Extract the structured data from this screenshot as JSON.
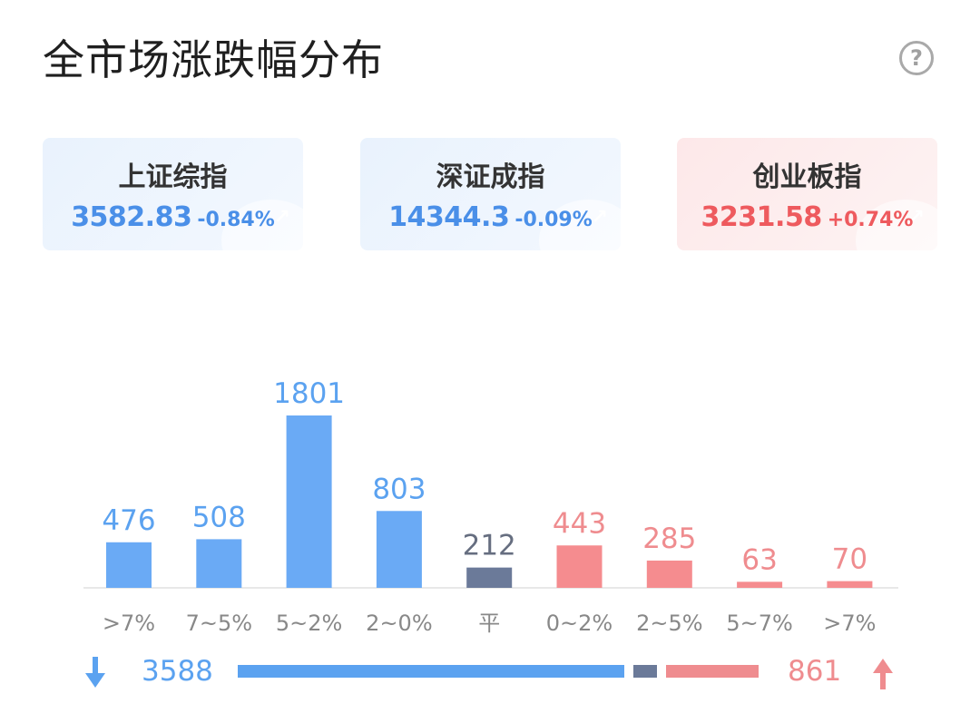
{
  "header": {
    "title": "全市场涨跌幅分布",
    "help_icon": "?"
  },
  "indices": [
    {
      "name": "上证综指",
      "price": "3582.83",
      "change": "-0.84%",
      "color": "#4a8fe8",
      "deco_icon": "chart-up-icon"
    },
    {
      "name": "深证成指",
      "price": "14344.3",
      "change": "-0.09%",
      "color": "#4a8fe8",
      "deco_icon": "chart-up-icon"
    },
    {
      "name": "创业板指",
      "price": "3231.58",
      "change": "+0.74%",
      "color": "#ee5a5e",
      "deco_icon": "chart-up-icon"
    }
  ],
  "chart_data": {
    "type": "bar",
    "categories": [
      ">7%",
      "7~5%",
      "5~2%",
      "2~0%",
      "平",
      "0~2%",
      "2~5%",
      "5~7%",
      ">7%"
    ],
    "values": [
      476,
      508,
      1801,
      803,
      212,
      443,
      285,
      63,
      70
    ],
    "groups": [
      "down",
      "down",
      "down",
      "down",
      "flat",
      "up",
      "up",
      "up",
      "up"
    ],
    "colors": {
      "down": "#6aaaf5",
      "flat": "#6b7a99",
      "up": "#f58c8f",
      "down_label": "#5ba2f0",
      "flat_label": "#666e80",
      "up_label": "#ef8c8f",
      "axis_label": "#888888",
      "baseline": "#e8e8e8"
    }
  },
  "summary": {
    "down_total": "3588",
    "up_total": "861",
    "flat_total": 212,
    "down_icon": "arrow-down-icon",
    "up_icon": "arrow-up-icon",
    "down_color": "#5ba2f0",
    "up_color": "#ef8c8f",
    "flat_color": "#6b7a99"
  }
}
